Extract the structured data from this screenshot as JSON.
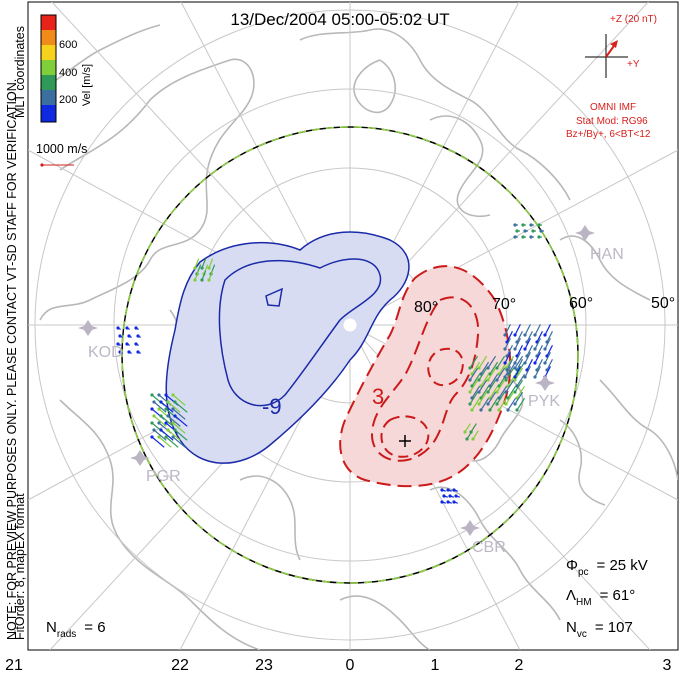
{
  "title": "13/Dec/2004 05:00-05:02 UT",
  "side_note": {
    "line1": "NOTE: FOR PREVIEW PURPOSES ONLY. PLEASE CONTACT VT-SD STAFF FOR VERIFICATION.",
    "line2": "FitOrder: 8, mapEX format"
  },
  "coords_label": "MLT coordinates",
  "velocity_scale": {
    "title": "Vel [m/s]",
    "ticks": [
      "600",
      "400",
      "200"
    ],
    "colors": [
      "#e8231a",
      "#f08a18",
      "#f6d21c",
      "#7fce3a",
      "#2f9a58",
      "#3a6fa0",
      "#1028e0"
    ]
  },
  "ref_vector": {
    "label": "1000 m/s",
    "color": "#d02020"
  },
  "imf": {
    "z_label": "+Z (20 nT)",
    "y_label": "+Y",
    "source": "OMNI IMF",
    "stat_mod": "Stat Mod: RG96",
    "condition": "Bz+/By+, 6<BT<12",
    "color": "#d8201c"
  },
  "latitude_labels": [
    "80°",
    "70°",
    "60°",
    "50°"
  ],
  "mlt_labels": [
    "21",
    "22",
    "23",
    "0",
    "1",
    "2",
    "3"
  ],
  "stations": [
    "HAN",
    "KOD",
    "PGR",
    "PYK",
    "CBR"
  ],
  "contour_labels": {
    "negative": "-9",
    "positive": "3"
  },
  "stats": {
    "phi_pc_label": "Φ",
    "phi_pc_sub": "pc",
    "phi_pc_value": "= 25 kV",
    "lambda_hm_label": "Λ",
    "lambda_hm_sub": "HM",
    "lambda_hm_value": "= 61°",
    "nvc_label": "N",
    "nvc_sub": "vc",
    "nvc_value": "= 107",
    "nrads_label": "N",
    "nrads_sub": "rads",
    "nrads_value": "= 6"
  },
  "colors": {
    "negative_fill": "#d8dcf2",
    "negative_line": "#1a2aa8",
    "positive_fill": "#f7d8d8",
    "positive_line": "#cc1a1a",
    "boundary_green": "#8cd040",
    "coast": "#b8b8b8",
    "grid": "#c8c8c8"
  }
}
